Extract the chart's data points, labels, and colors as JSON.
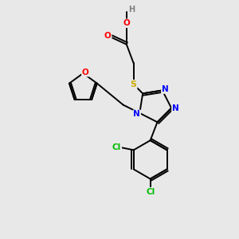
{
  "background_color": "#e8e8e8",
  "bond_color": "#000000",
  "atom_colors": {
    "O": "#ff0000",
    "N": "#0000ff",
    "S": "#ccaa00",
    "Cl": "#00bb00",
    "H": "#808080",
    "C": "#000000"
  },
  "font_size": 7.5,
  "lw": 1.4
}
